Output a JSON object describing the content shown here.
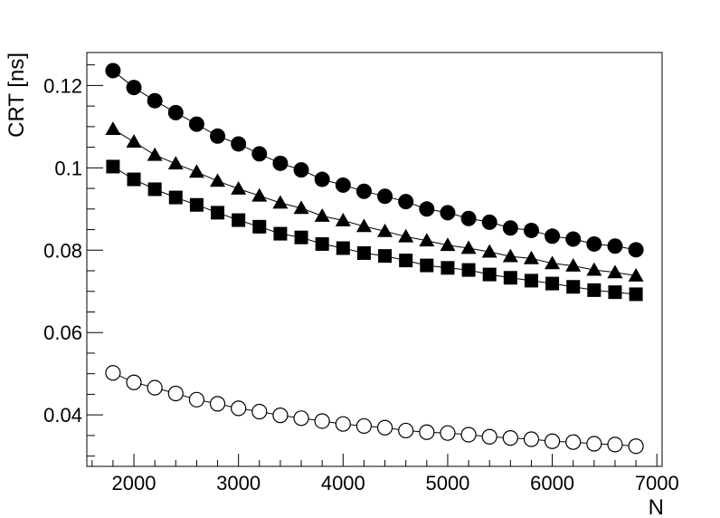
{
  "chart_data": {
    "type": "scatter",
    "title": "",
    "xlabel": "N",
    "ylabel": "CRT [ns]",
    "xlim": [
      1550,
      7050
    ],
    "ylim": [
      0.0275,
      0.128
    ],
    "x_ticks": [
      2000,
      3000,
      4000,
      5000,
      6000,
      7000
    ],
    "x_tick_labels": [
      "2000",
      "3000",
      "4000",
      "5000",
      "6000",
      "7000"
    ],
    "y_ticks": [
      0.04,
      0.06,
      0.08,
      0.1,
      0.12
    ],
    "y_tick_labels": [
      "0.04",
      "0.06",
      "0.08",
      "0.1",
      "0.12"
    ],
    "grid": false,
    "legend": "none",
    "x": [
      1800,
      2000,
      2200,
      2400,
      2600,
      2800,
      3000,
      3200,
      3400,
      3600,
      3800,
      4000,
      4200,
      4400,
      4600,
      4800,
      5000,
      5200,
      5400,
      5600,
      5800,
      6000,
      6200,
      6400,
      6600,
      6800
    ],
    "series": [
      {
        "marker": "filled-circle",
        "color": "#000000",
        "values": [
          0.1236,
          0.1195,
          0.1163,
          0.1134,
          0.1106,
          0.1077,
          0.1058,
          0.1034,
          0.1011,
          0.0995,
          0.0972,
          0.0958,
          0.0943,
          0.0931,
          0.0918,
          0.09,
          0.0891,
          0.0877,
          0.0868,
          0.0854,
          0.0848,
          0.0834,
          0.0827,
          0.0815,
          0.081,
          0.0801
        ]
      },
      {
        "marker": "filled-triangle",
        "color": "#000000",
        "values": [
          0.1094,
          0.1063,
          0.1031,
          0.101,
          0.099,
          0.0968,
          0.0949,
          0.0932,
          0.0915,
          0.0902,
          0.0883,
          0.0872,
          0.0858,
          0.0846,
          0.0833,
          0.0823,
          0.0812,
          0.0805,
          0.0796,
          0.0785,
          0.078,
          0.0768,
          0.0762,
          0.0752,
          0.0746,
          0.0738
        ]
      },
      {
        "marker": "filled-square",
        "color": "#000000",
        "values": [
          0.1003,
          0.0972,
          0.0948,
          0.0928,
          0.091,
          0.0891,
          0.0873,
          0.0857,
          0.084,
          0.0831,
          0.0815,
          0.0805,
          0.0793,
          0.0786,
          0.0775,
          0.0763,
          0.0757,
          0.0752,
          0.0741,
          0.0733,
          0.0726,
          0.0719,
          0.0711,
          0.0703,
          0.0698,
          0.0693
        ]
      },
      {
        "marker": "open-circle",
        "color": "#000000",
        "values": [
          0.0502,
          0.0479,
          0.0466,
          0.0452,
          0.0437,
          0.0427,
          0.0416,
          0.0408,
          0.0399,
          0.0392,
          0.0385,
          0.0378,
          0.0373,
          0.0369,
          0.0362,
          0.0358,
          0.0356,
          0.0352,
          0.0347,
          0.0344,
          0.0341,
          0.0336,
          0.0334,
          0.033,
          0.0328,
          0.0324
        ]
      }
    ]
  }
}
